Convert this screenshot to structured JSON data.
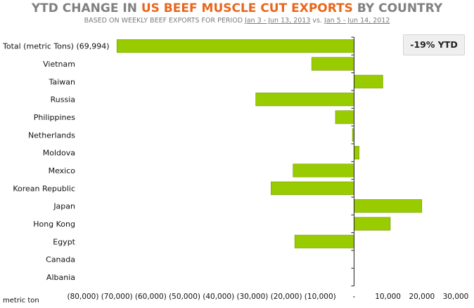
{
  "header": {
    "title_pre": "YTD CHANGE IN ",
    "title_highlight": "US BEEF MUSCLE CUT EXPORTS",
    "title_post": " BY COUNTRY",
    "subtitle_pre": "BASED ON WEEKLY BEEF EXPORTS FOR PERIOD ",
    "subtitle_period1": "Jan 3 - Jun 13, 2013",
    "subtitle_vs": " vs. ",
    "subtitle_period2": "Jan 5 - Jun 14, 2012"
  },
  "badge": {
    "text": "-19% YTD"
  },
  "colors": {
    "bar": "#99cc00",
    "bar_edge": "#6f9a00",
    "title_gray": "#808080",
    "title_accent": "#e8661c"
  },
  "chart_data": {
    "type": "bar",
    "orientation": "horizontal",
    "title": "YTD CHANGE IN US BEEF MUSCLE CUT EXPORTS BY COUNTRY",
    "subtitle": "BASED ON WEEKLY BEEF EXPORTS FOR PERIOD Jan 3 - Jun 13, 2013 vs. Jan 5 - Jun 14, 2012",
    "xlabel": "metric ton",
    "categories": [
      "Total (metric Tons) (69,994)",
      "Vietnam",
      "Taiwan",
      "Russia",
      "Philippines",
      "Netherlands",
      "Moldova",
      "Mexico",
      "Korean Republic",
      "Japan",
      "Hong Kong",
      "Egypt",
      "Canada",
      "Albania"
    ],
    "values": [
      -69994,
      -12500,
      8500,
      -29000,
      -5500,
      -500,
      1500,
      -18000,
      -24500,
      20000,
      10700,
      -17500,
      0,
      0
    ],
    "xlim": [
      -80000,
      30000
    ],
    "ticks": [
      -80000,
      -70000,
      -60000,
      -50000,
      -40000,
      -30000,
      -20000,
      -10000,
      0,
      10000,
      20000,
      30000
    ],
    "tick_labels": [
      "(80,000)",
      "(70,000)",
      "(60,000)",
      "(50,000)",
      "(40,000)",
      "(30,000)",
      "(20,000)",
      "(10,000)",
      "-",
      "10,000",
      "20,000",
      "30,000"
    ],
    "grid": false,
    "annotation": "-19% YTD"
  }
}
